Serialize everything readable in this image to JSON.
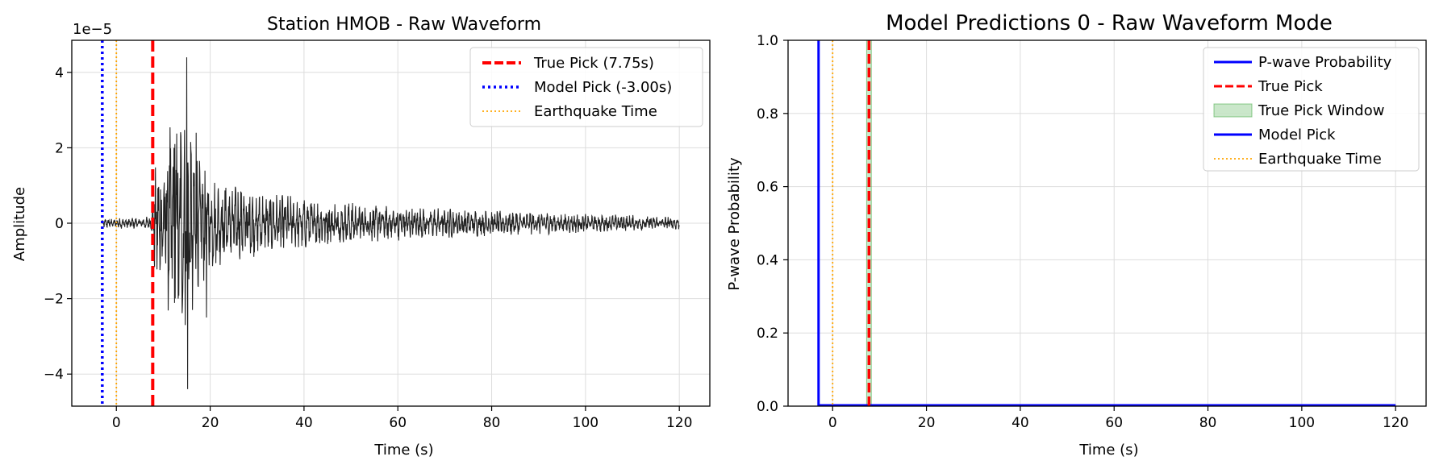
{
  "colors": {
    "waveform": "#222222",
    "true_pick": "#ff0000",
    "model_pick": "#0000ff",
    "earthquake": "#ffa500",
    "probability": "#0000ff",
    "window_fill": "#2ca02c",
    "grid": "#dddddd"
  },
  "chart_data": [
    {
      "type": "line",
      "title": "Station HMOB - Raw Waveform",
      "xlabel": "Time (s)",
      "ylabel": "Amplitude",
      "offset_text": "1e−5",
      "xlim": [
        -9.5,
        126.5
      ],
      "ylim": [
        -4.85,
        4.85
      ],
      "xticks": [
        0,
        20,
        40,
        60,
        80,
        100,
        120
      ],
      "xtick_labels": [
        "0",
        "20",
        "40",
        "60",
        "80",
        "100",
        "120"
      ],
      "yticks": [
        -4,
        -2,
        0,
        2,
        4
      ],
      "ytick_labels": [
        "−4",
        "−2",
        "0",
        "2",
        "4"
      ],
      "grid": true,
      "legend_position": "top-right",
      "waveform": {
        "t_start": -3,
        "t_end": 120,
        "envelope": [
          [
            -3,
            0.1
          ],
          [
            7.5,
            0.14
          ],
          [
            8,
            1.1
          ],
          [
            10,
            1.7
          ],
          [
            12,
            2.2
          ],
          [
            14,
            2.3
          ],
          [
            16,
            1.9
          ],
          [
            18,
            1.3
          ],
          [
            22,
            0.9
          ],
          [
            28,
            0.75
          ],
          [
            35,
            0.6
          ],
          [
            45,
            0.48
          ],
          [
            60,
            0.36
          ],
          [
            80,
            0.27
          ],
          [
            100,
            0.2
          ],
          [
            120,
            0.14
          ]
        ],
        "spikes": [
          [
            15,
            4.4
          ],
          [
            15.2,
            -4.4
          ],
          [
            14.7,
            -2.7
          ],
          [
            19.2,
            -2.5
          ],
          [
            17,
            2.4
          ],
          [
            16.2,
            -2.3
          ],
          [
            13.2,
            -2.0
          ],
          [
            12.5,
            2.1
          ]
        ]
      },
      "vlines": [
        {
          "name": "True Pick (7.75s)",
          "x": 7.75,
          "style": "dashed",
          "color_key": "true_pick"
        },
        {
          "name": "Model Pick (-3.00s)",
          "x": -3.0,
          "style": "dotted",
          "color_key": "model_pick"
        },
        {
          "name": "Earthquake Time",
          "x": 0,
          "style": "dotted-thin",
          "color_key": "earthquake"
        }
      ],
      "legend": [
        "True Pick (7.75s)",
        "Model Pick (-3.00s)",
        "Earthquake Time"
      ]
    },
    {
      "type": "line",
      "title": "Model Predictions 0 - Raw Waveform Mode",
      "xlabel": "Time (s)",
      "ylabel": "P-wave Probability",
      "xlim": [
        -9.5,
        126.5
      ],
      "ylim": [
        0,
        1
      ],
      "xticks": [
        0,
        20,
        40,
        60,
        80,
        100,
        120
      ],
      "xtick_labels": [
        "0",
        "20",
        "40",
        "60",
        "80",
        "100",
        "120"
      ],
      "yticks": [
        0,
        0.2,
        0.4,
        0.6,
        0.8,
        1.0
      ],
      "ytick_labels": [
        "0.0",
        "0.2",
        "0.4",
        "0.6",
        "0.8",
        "1.0"
      ],
      "grid": true,
      "legend_position": "top-right",
      "probability": {
        "x": [
          -3,
          120
        ],
        "y": [
          0,
          0
        ]
      },
      "true_pick_window": [
        7.25,
        8.25
      ],
      "vlines": [
        {
          "name": "True Pick",
          "x": 7.75,
          "style": "dashed",
          "color_key": "true_pick"
        },
        {
          "name": "Model Pick",
          "x": -3.0,
          "style": "solid",
          "color_key": "model_pick"
        },
        {
          "name": "Earthquake Time",
          "x": 0,
          "style": "dotted-thin",
          "color_key": "earthquake"
        }
      ],
      "legend": [
        "P-wave Probability",
        "True Pick",
        "True Pick Window",
        "Model Pick",
        "Earthquake Time"
      ]
    }
  ]
}
